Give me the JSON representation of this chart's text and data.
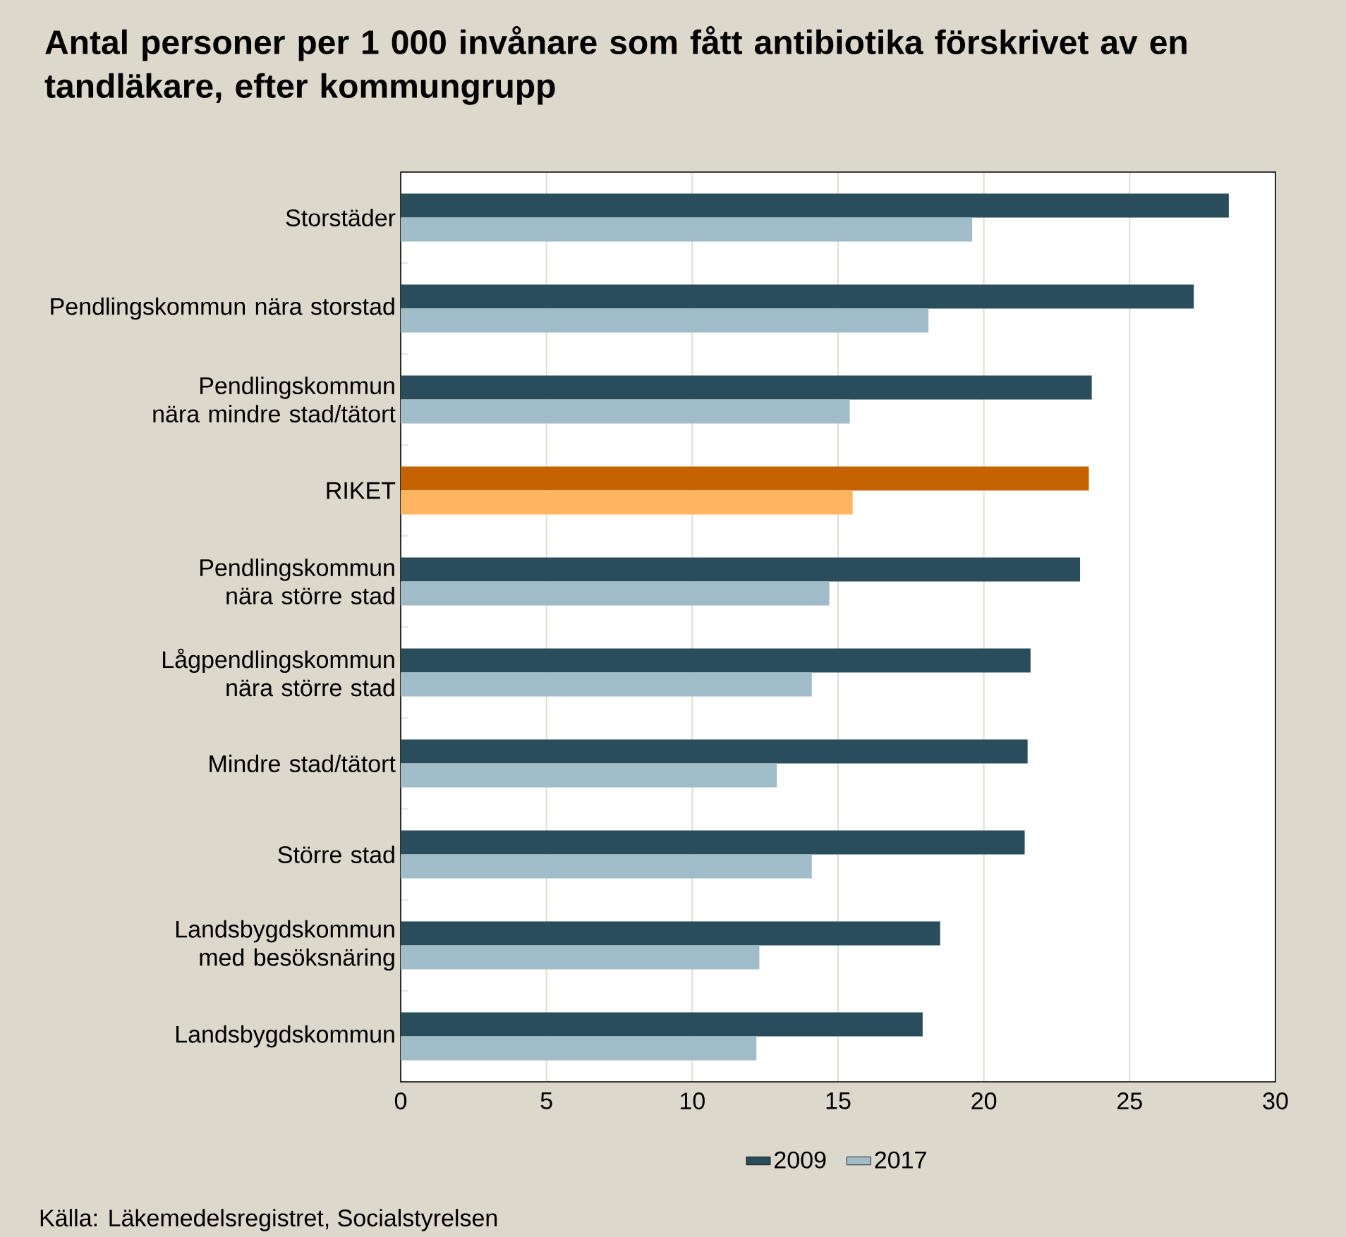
{
  "chart_data": {
    "type": "bar",
    "orientation": "horizontal",
    "title": "Antal personer per 1 000 invånare som fått antibiotika förskrivet av en tandläkare, efter kommungrupp",
    "categories": [
      "Storstäder",
      "Pendlingskommun nära storstad",
      "Pendlingskommun nära mindre stad/tätort",
      "RIKET",
      "Pendlingskommun nära större stad",
      "Lågpendlingskommun nära större stad",
      "Mindre stad/tätort",
      "Större stad",
      "Landsbygdskommun med besöksnäring",
      "Landsbygdskommun"
    ],
    "series": [
      {
        "name": "2009",
        "color": "#294d5a",
        "colors": [
          "#294d5a",
          "#294d5a",
          "#294d5a",
          "#c56200",
          "#294d5a",
          "#294d5a",
          "#294d5a",
          "#294d5a",
          "#294d5a",
          "#294d5a"
        ],
        "values": [
          28.4,
          27.2,
          23.7,
          23.6,
          23.3,
          21.6,
          21.5,
          21.4,
          18.5,
          17.9
        ]
      },
      {
        "name": "2017",
        "color": "#9fbcc8",
        "colors": [
          "#9fbcc8",
          "#9fbcc8",
          "#9fbcc8",
          "#ffb560",
          "#9fbcc8",
          "#9fbcc8",
          "#9fbcc8",
          "#9fbcc8",
          "#9fbcc8",
          "#9fbcc8"
        ],
        "values": [
          19.6,
          18.1,
          15.4,
          15.5,
          14.7,
          14.1,
          12.9,
          14.1,
          12.3,
          12.2
        ]
      }
    ],
    "xlim": [
      0,
      30
    ],
    "xticks": [
      0,
      5,
      10,
      15,
      20,
      25,
      30
    ],
    "grid": "x",
    "legend": "bottom",
    "annotations": [
      "Källa: Läkemedelsregistret, Socialstyrelsen"
    ]
  }
}
